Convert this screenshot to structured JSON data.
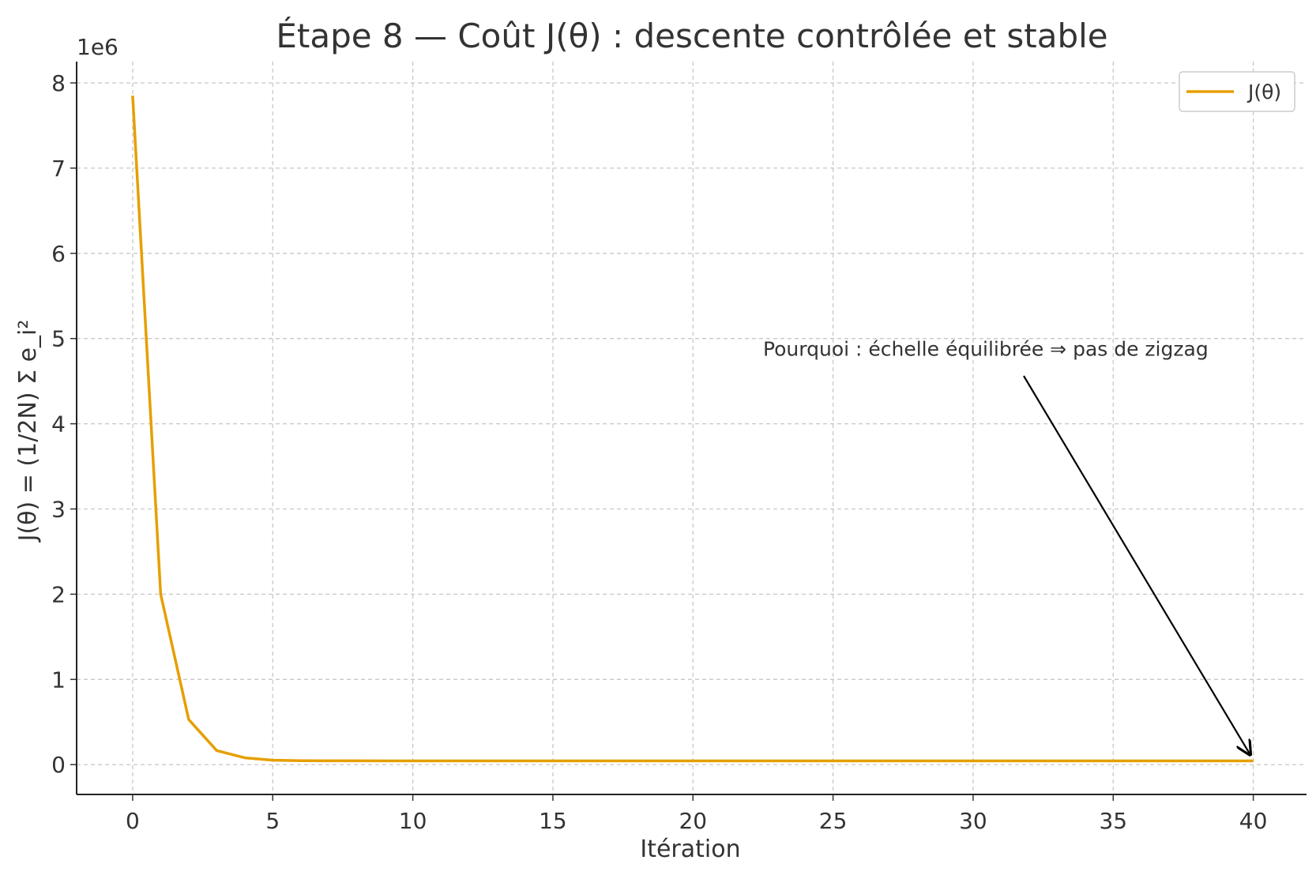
{
  "chart_data": {
    "type": "line",
    "title": "Étape 8 — Coût J(θ) : descente contrôlée et stable",
    "xlabel": "Itération",
    "ylabel": "J(θ) = (1/2N) Σ e_i²",
    "y_offset_text": "1e6",
    "xlim": [
      -2,
      41.9
    ],
    "ylim": [
      -350000,
      8250000
    ],
    "x_ticks": [
      0,
      5,
      10,
      15,
      20,
      25,
      30,
      35,
      40
    ],
    "x_tick_labels": [
      "0",
      "5",
      "10",
      "15",
      "20",
      "25",
      "30",
      "35",
      "40"
    ],
    "y_ticks": [
      0,
      1000000,
      2000000,
      3000000,
      4000000,
      5000000,
      6000000,
      7000000,
      8000000
    ],
    "y_tick_labels": [
      "0",
      "1",
      "2",
      "3",
      "4",
      "5",
      "6",
      "7",
      "8"
    ],
    "grid": true,
    "legend_position": "top-right",
    "series": [
      {
        "name": "J(θ)",
        "color": "#E69F00",
        "x": [
          0,
          1,
          2,
          3,
          4,
          5,
          6,
          7,
          8,
          9,
          10,
          11,
          12,
          13,
          14,
          15,
          16,
          17,
          18,
          19,
          20,
          21,
          22,
          23,
          24,
          25,
          26,
          27,
          28,
          29,
          30,
          31,
          32,
          33,
          34,
          35,
          36,
          37,
          38,
          39,
          40
        ],
        "y": [
          7850000,
          2000000,
          530000,
          165000,
          80000,
          52000,
          46000,
          45000,
          44500,
          44300,
          44200,
          44200,
          44200,
          44200,
          44200,
          44200,
          44200,
          44200,
          44200,
          44200,
          44200,
          44200,
          44200,
          44200,
          44200,
          44200,
          44200,
          44200,
          44200,
          44200,
          44200,
          44200,
          44200,
          44200,
          44200,
          44200,
          44200,
          44200,
          44200,
          44200,
          44200
        ]
      }
    ],
    "annotations": [
      {
        "text": "Pourquoi : échelle équilibrée ⇒ pas de zigzag",
        "text_x": 22.5,
        "text_y": 4800000,
        "arrow_to_x": 40,
        "arrow_to_y": 44200
      }
    ]
  }
}
